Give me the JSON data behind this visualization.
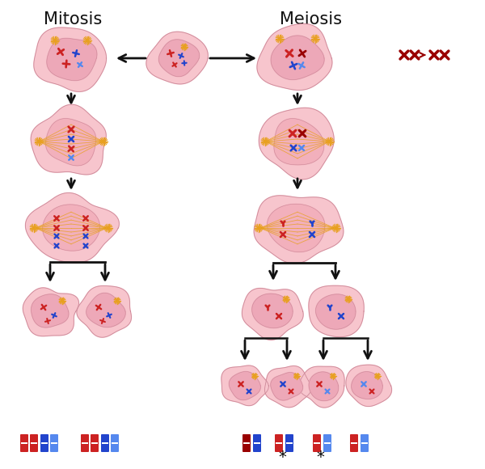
{
  "title_mitosis": "Mitosis",
  "title_meiosis": "Meiosis",
  "bg_color": "#ffffff",
  "cell_outer_color": "#f7c5cd",
  "cell_outer_color2": "#f2b0bc",
  "cell_inner_color": "#eda8b8",
  "spindle_color": "#e8a020",
  "chr_red": "#cc2222",
  "chr_darkred": "#990000",
  "chr_blue": "#2244cc",
  "chr_lightblue": "#5588ee",
  "arrow_color": "#111111",
  "star_color": "#e8a020",
  "text_color": "#111111"
}
